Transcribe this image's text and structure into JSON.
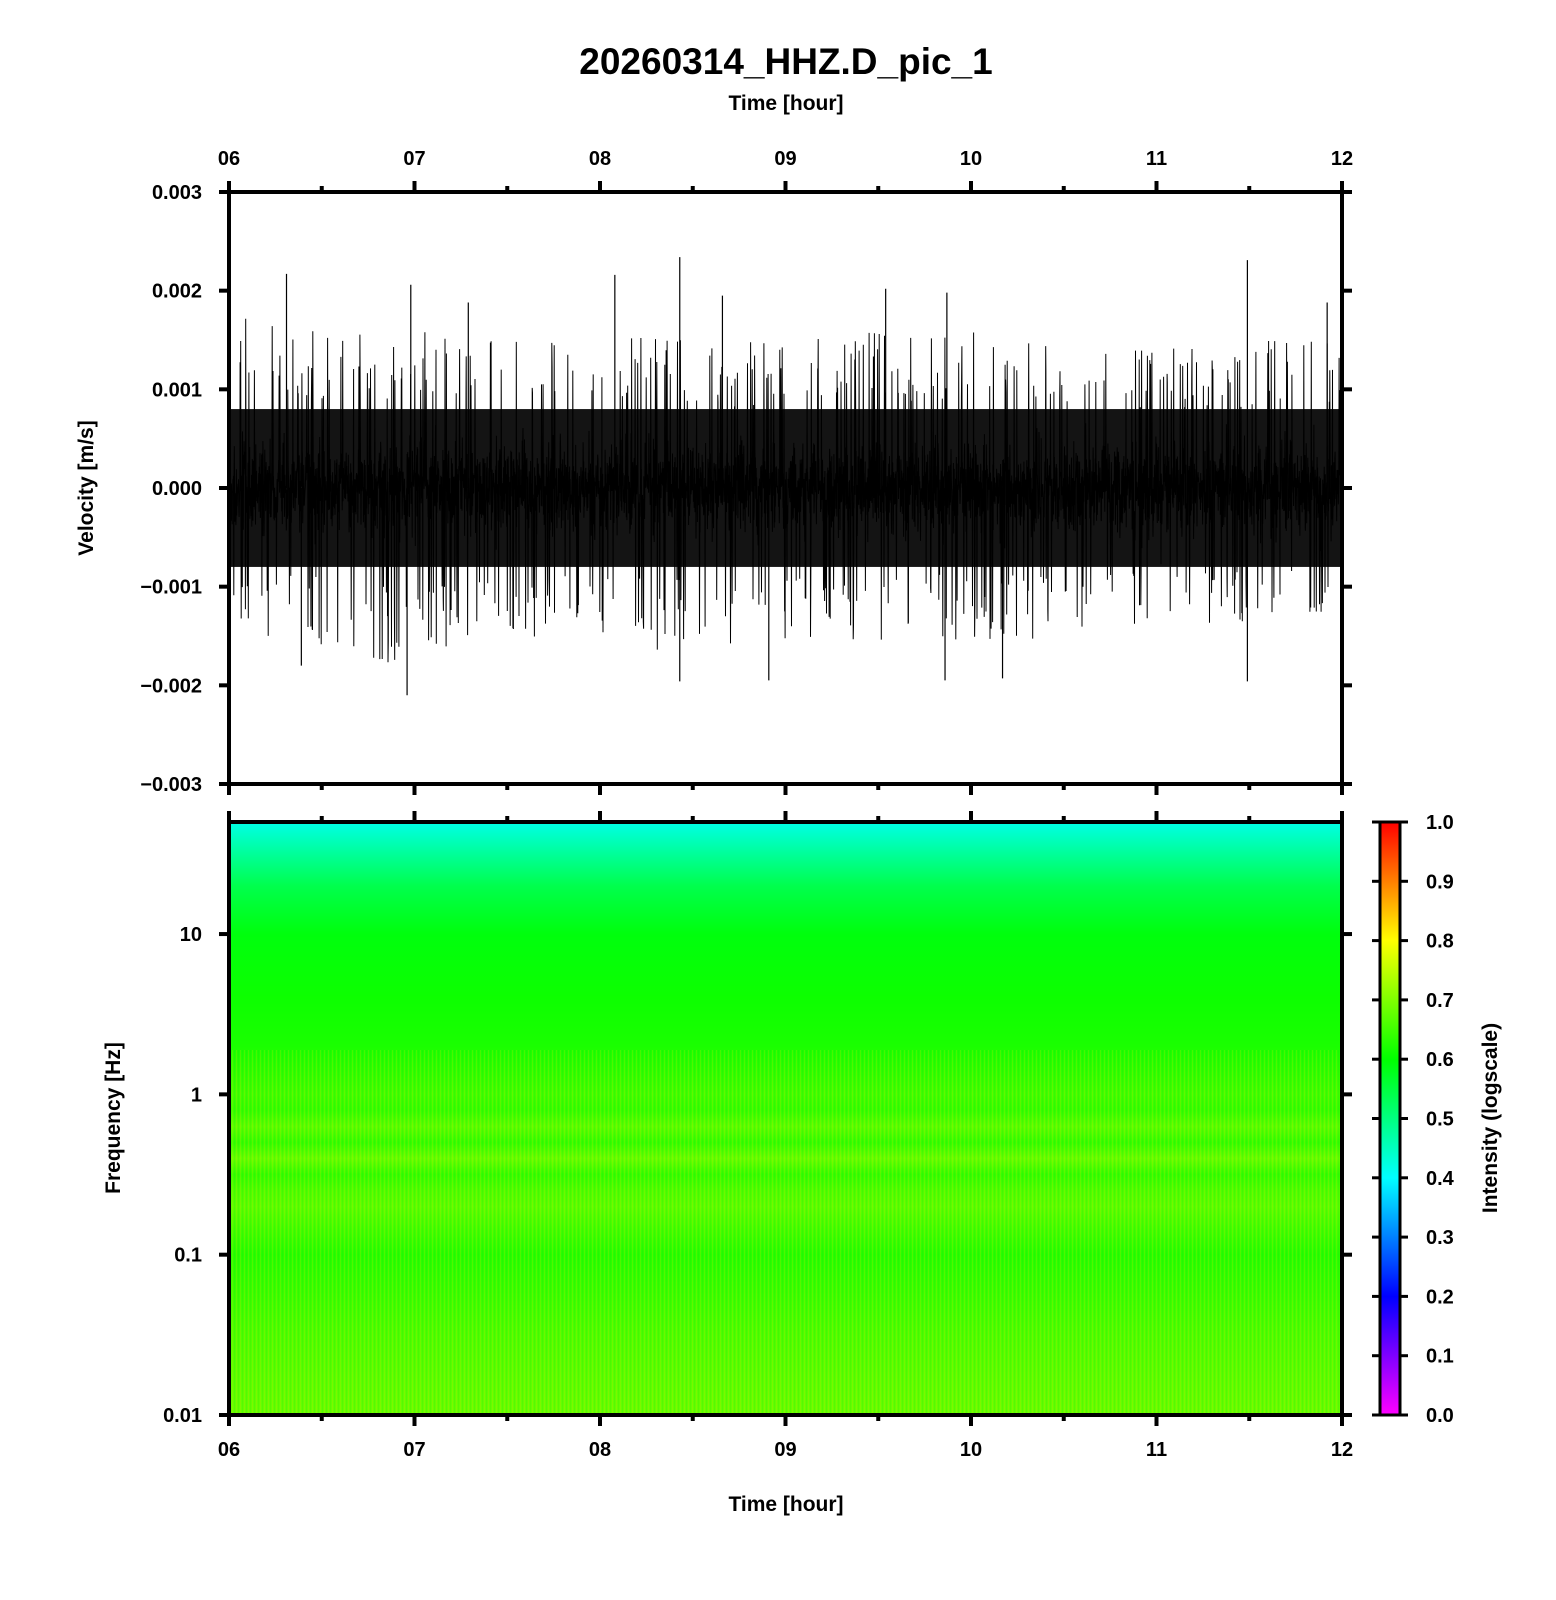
{
  "title": "20260314_HHZ.D_pic_1",
  "colors": {
    "trace": "#000000",
    "frame": "#000000",
    "colormap": [
      "#ff00ff",
      "#7f00ff",
      "#0000ff",
      "#0080ff",
      "#00ffff",
      "#00ff80",
      "#00ff00",
      "#80ff00",
      "#ffff00",
      "#ff8000",
      "#ff0000"
    ]
  },
  "chart_data": [
    {
      "type": "line",
      "panel": "waveform",
      "xlabel": "Time [hour]",
      "ylabel": "Velocity [m/s]",
      "xlim": [
        6,
        12
      ],
      "ylim": [
        -0.003,
        0.003
      ],
      "x_ticks": [
        "06",
        "07",
        "08",
        "09",
        "10",
        "11",
        "12"
      ],
      "y_ticks": [
        "0.003",
        "0.002",
        "0.001",
        "0.000",
        "−0.001",
        "−0.002",
        "−0.003"
      ],
      "x_axis_position": "top",
      "series": [
        {
          "x_range": [
            6,
            12
          ],
          "baseline_amplitude": 0.0008,
          "envelope_x": [
            6.0,
            6.5,
            7.0,
            7.5,
            8.0,
            8.5,
            9.0,
            9.5,
            10.0,
            10.5,
            11.0,
            11.5,
            12.0
          ],
          "envelope_max": [
            0.0018,
            0.0016,
            0.0016,
            0.0015,
            0.0017,
            0.0015,
            0.0015,
            0.0016,
            0.0016,
            0.0014,
            0.0014,
            0.0015,
            0.0016
          ],
          "envelope_min": [
            -0.0016,
            -0.0016,
            -0.0019,
            -0.0016,
            -0.0016,
            -0.0017,
            -0.0016,
            -0.0016,
            -0.0016,
            -0.0015,
            -0.0014,
            -0.0014,
            -0.0013
          ],
          "spikes": [
            {
              "x": 6.31,
              "y": 0.00217
            },
            {
              "x": 6.39,
              "y": -0.0018
            },
            {
              "x": 6.98,
              "y": 0.00206
            },
            {
              "x": 6.96,
              "y": -0.0021
            },
            {
              "x": 7.29,
              "y": 0.00188
            },
            {
              "x": 8.08,
              "y": 0.00216
            },
            {
              "x": 8.43,
              "y": 0.00234
            },
            {
              "x": 8.43,
              "y": -0.00196
            },
            {
              "x": 8.66,
              "y": 0.00195
            },
            {
              "x": 8.91,
              "y": -0.00195
            },
            {
              "x": 9.54,
              "y": 0.00202
            },
            {
              "x": 9.87,
              "y": 0.00198
            },
            {
              "x": 9.86,
              "y": -0.00195
            },
            {
              "x": 10.17,
              "y": -0.00193
            },
            {
              "x": 11.49,
              "y": 0.00231
            },
            {
              "x": 11.49,
              "y": -0.00196
            },
            {
              "x": 11.92,
              "y": 0.00188
            }
          ]
        }
      ]
    },
    {
      "type": "heatmap",
      "panel": "spectrogram",
      "xlabel": "Time [hour]",
      "ylabel": "Frequency [Hz]",
      "xlim": [
        6,
        12
      ],
      "ylim": [
        0.01,
        50
      ],
      "yscale": "log",
      "x_ticks": [
        "06",
        "07",
        "08",
        "09",
        "10",
        "11",
        "12"
      ],
      "y_ticks": [
        "10",
        "1",
        "0.1",
        "0.01"
      ],
      "colorbar": {
        "label": "Intensity (logscale)",
        "range": [
          0,
          1
        ],
        "ticks": [
          "1.0",
          "0.9",
          "0.8",
          "0.7",
          "0.6",
          "0.5",
          "0.4",
          "0.3",
          "0.2",
          "0.1",
          "0.0"
        ],
        "position": "right"
      },
      "intensity_profile": {
        "log10_frequency": [
          -2.0,
          -1.5,
          -1.0,
          -0.7,
          -0.6,
          -0.5,
          -0.4,
          -0.3,
          -0.2,
          -0.1,
          0.0,
          0.3,
          0.6,
          1.0,
          1.3,
          1.5,
          1.7
        ],
        "intensity": [
          0.68,
          0.66,
          0.63,
          0.67,
          0.66,
          0.64,
          0.68,
          0.64,
          0.67,
          0.64,
          0.65,
          0.62,
          0.61,
          0.59,
          0.54,
          0.48,
          0.42
        ]
      }
    }
  ]
}
